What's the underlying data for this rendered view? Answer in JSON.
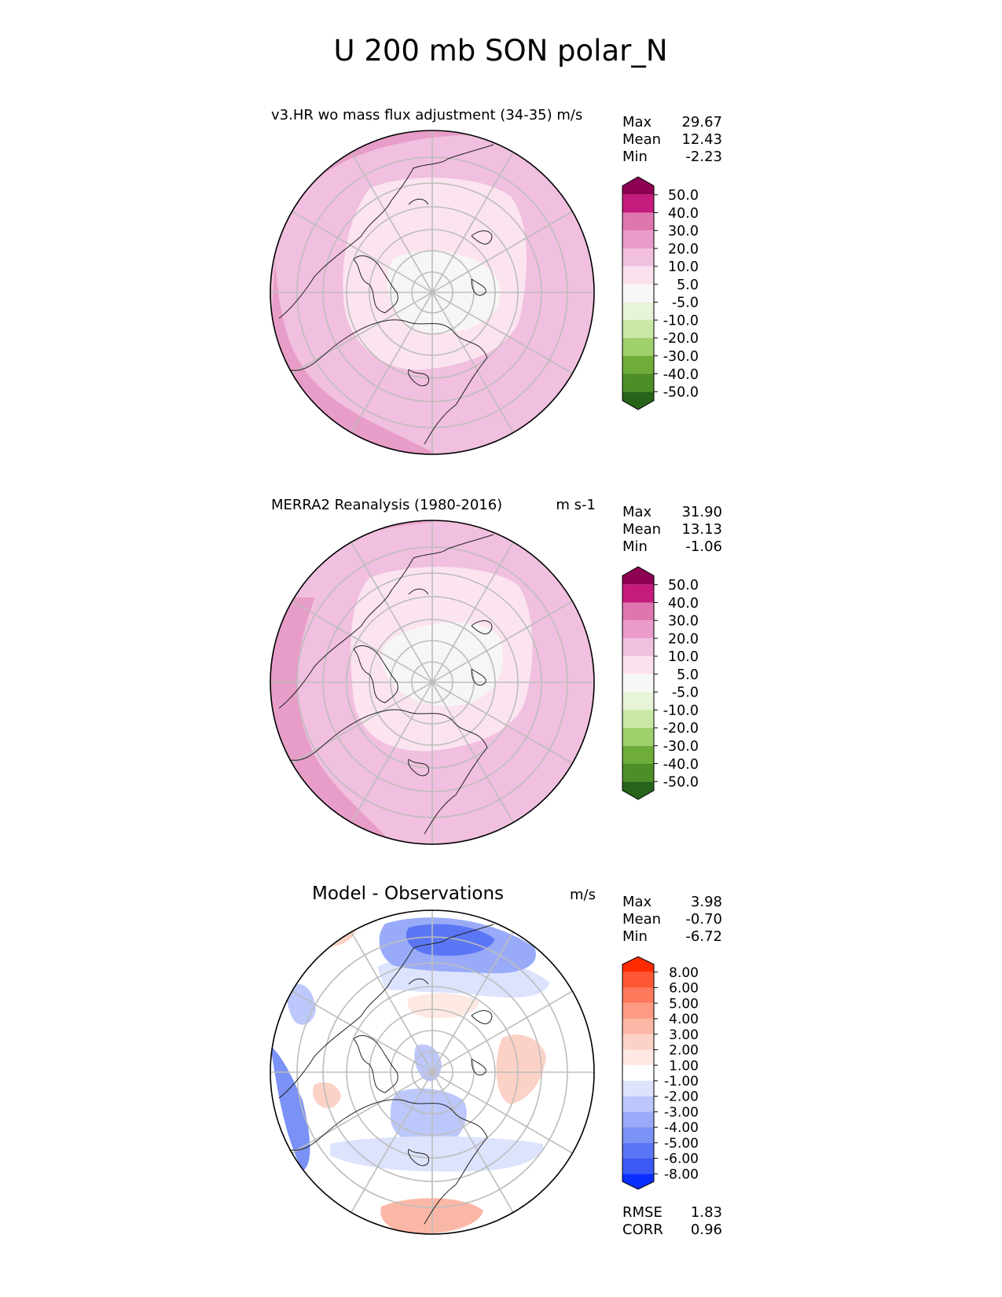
{
  "figure": {
    "title": "U 200 mb SON polar_N"
  },
  "chart_data": [
    {
      "type": "heatmap",
      "projection": "north-polar-stereographic",
      "title": "v3.HR wo mass flux adjustment (34-35) m/s",
      "units": "",
      "stats": [
        {
          "label": "Max",
          "value": "29.67"
        },
        {
          "label": "Mean",
          "value": "12.43"
        },
        {
          "label": "Min",
          "value": "-2.23"
        }
      ],
      "colorbar": {
        "levels": [
          "50.0",
          "40.0",
          "30.0",
          "20.0",
          "10.0",
          "5.0",
          "-5.0",
          "-10.0",
          "-20.0",
          "-30.0",
          "-40.0",
          "-50.0"
        ],
        "colors": [
          "#8e0152",
          "#c51b7d",
          "#de77ae",
          "#ea9bc9",
          "#f1bfdf",
          "#fbe1ee",
          "#f7f7f7",
          "#e7f4d8",
          "#c9e8a3",
          "#9fd06c",
          "#6fad3a",
          "#4d8f26",
          "#276419"
        ]
      },
      "field_zones": [
        {
          "level": "10-20",
          "color": "#f1bfdf"
        },
        {
          "level": "20-30",
          "color": "#e89dc8"
        },
        {
          "level": "5-10",
          "color": "#fbe4f0"
        },
        {
          "level": "-5-5",
          "color": "#f6f6f5"
        }
      ]
    },
    {
      "type": "heatmap",
      "projection": "north-polar-stereographic",
      "title": "MERRA2 Reanalysis (1980-2016)",
      "units": "m s-1",
      "stats": [
        {
          "label": "Max",
          "value": "31.90"
        },
        {
          "label": "Mean",
          "value": "13.13"
        },
        {
          "label": "Min",
          "value": "-1.06"
        }
      ],
      "colorbar": {
        "levels": [
          "50.0",
          "40.0",
          "30.0",
          "20.0",
          "10.0",
          "5.0",
          "-5.0",
          "-10.0",
          "-20.0",
          "-30.0",
          "-40.0",
          "-50.0"
        ],
        "colors": [
          "#8e0152",
          "#c51b7d",
          "#de77ae",
          "#ea9bc9",
          "#f1bfdf",
          "#fbe1ee",
          "#f7f7f7",
          "#e7f4d8",
          "#c9e8a3",
          "#9fd06c",
          "#6fad3a",
          "#4d8f26",
          "#276419"
        ]
      },
      "field_zones": [
        {
          "level": "10-20",
          "color": "#f1bfdf"
        },
        {
          "level": "20-30",
          "color": "#e89dc8"
        },
        {
          "level": "5-10",
          "color": "#fbe4f0"
        },
        {
          "level": "-5-5",
          "color": "#f6f6f5"
        }
      ]
    },
    {
      "type": "heatmap",
      "projection": "north-polar-stereographic",
      "title": "Model - Observations",
      "units": "m/s",
      "stats": [
        {
          "label": "Max",
          "value": "3.98"
        },
        {
          "label": "Mean",
          "value": "-0.70"
        },
        {
          "label": "Min",
          "value": "-6.72"
        }
      ],
      "extra_stats": [
        {
          "label": "RMSE",
          "value": "1.83"
        },
        {
          "label": "CORR",
          "value": "0.96"
        }
      ],
      "colorbar": {
        "levels": [
          "8.00",
          "6.00",
          "5.00",
          "4.00",
          "3.00",
          "2.00",
          "1.00",
          "-1.00",
          "-2.00",
          "-3.00",
          "-4.00",
          "-5.00",
          "-6.00",
          "-8.00"
        ],
        "colors": [
          "#ff2a00",
          "#ff5733",
          "#ff7a5c",
          "#fd9a83",
          "#fbb7a6",
          "#fcd2c6",
          "#fde9e2",
          "#ffffff",
          "#dde3fd",
          "#bcc8fb",
          "#99abf8",
          "#7a91f6",
          "#5b76f5",
          "#3b5af3",
          "#0a2dff"
        ]
      }
    }
  ]
}
